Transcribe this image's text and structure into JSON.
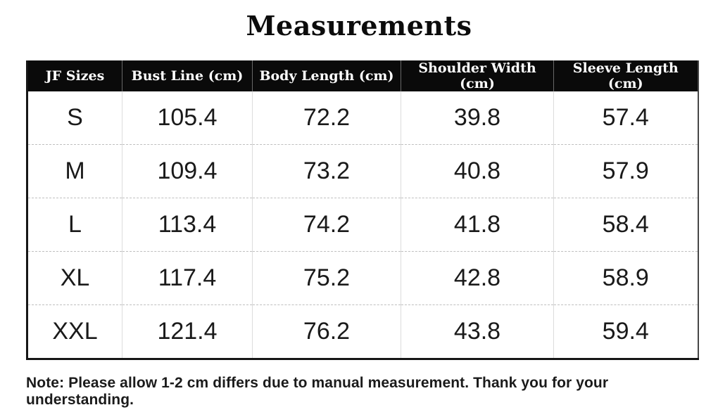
{
  "title": "Measurements",
  "table": {
    "columns": [
      "JF Sizes",
      "Bust Line (cm)",
      "Body Length (cm)",
      "Shoulder Width (cm)",
      "Sleeve Length (cm)"
    ],
    "rows": [
      {
        "size": "S",
        "values": [
          "105.4",
          "72.2",
          "39.8",
          "57.4"
        ]
      },
      {
        "size": "M",
        "values": [
          "109.4",
          "73.2",
          "40.8",
          "57.9"
        ]
      },
      {
        "size": "L",
        "values": [
          "113.4",
          "74.2",
          "41.8",
          "58.4"
        ]
      },
      {
        "size": "XL",
        "values": [
          "117.4",
          "75.2",
          "42.8",
          "58.9"
        ]
      },
      {
        "size": "XXL",
        "values": [
          "121.4",
          "76.2",
          "43.8",
          "59.4"
        ]
      }
    ]
  },
  "note": "Note: Please allow 1-2 cm differs due to manual measurement. Thank you for your understanding.",
  "colors": {
    "background": "#ffffff",
    "header_bg": "#0a0a0a",
    "header_text": "#ffffff",
    "body_text": "#1a1a1a",
    "grid_line": "#dcdcdc",
    "row_divider": "#bfbfbf",
    "outer_border": "#161616"
  }
}
